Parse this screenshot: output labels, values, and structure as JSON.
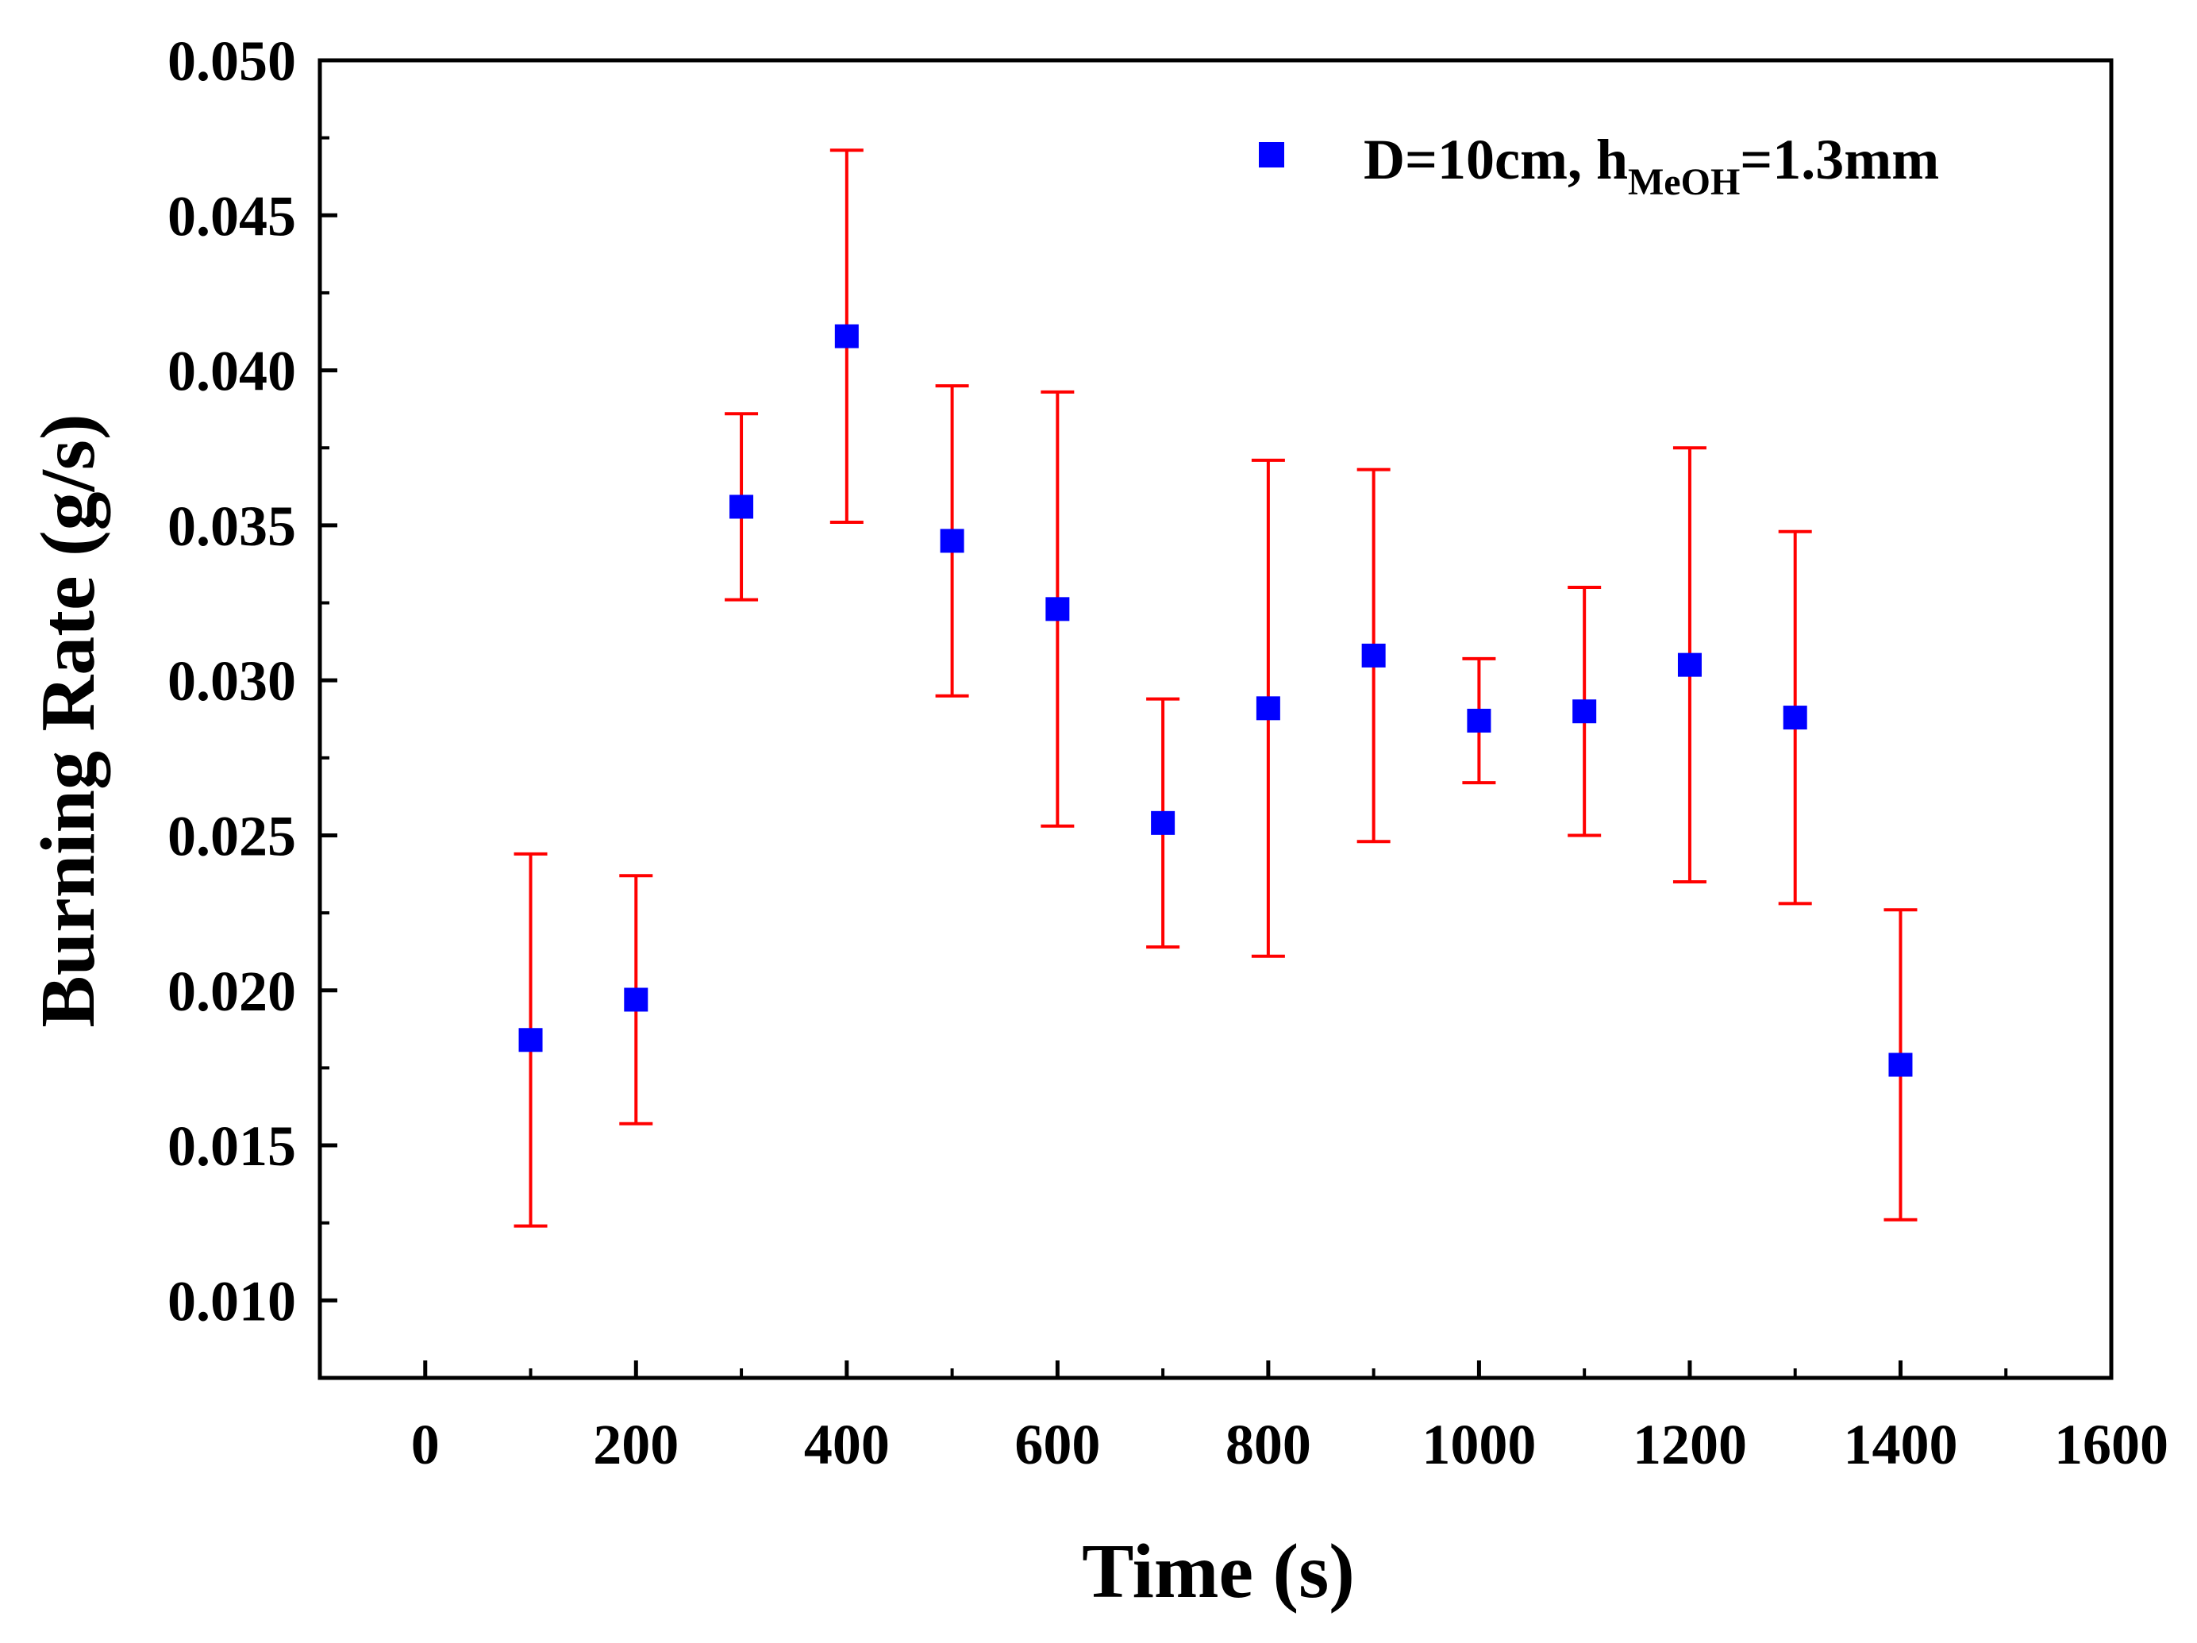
{
  "chart_data": {
    "type": "scatter",
    "xlabel": "Time (s)",
    "ylabel": "Burning Rate (g/s)",
    "xlim": [
      -100,
      1600
    ],
    "ylim": [
      0.0075,
      0.05
    ],
    "x_ticks": [
      0,
      200,
      400,
      600,
      800,
      1000,
      1200,
      1400,
      1600
    ],
    "x_tick_labels": [
      "0",
      "200",
      "400",
      "600",
      "800",
      "1000",
      "1200",
      "1400",
      "1600"
    ],
    "y_ticks": [
      0.01,
      0.015,
      0.02,
      0.025,
      0.03,
      0.035,
      0.04,
      0.045,
      0.05
    ],
    "y_tick_labels": [
      "0.010",
      "0.015",
      "0.020",
      "0.025",
      "0.030",
      "0.035",
      "0.040",
      "0.045",
      "0.050"
    ],
    "legend": {
      "position": "top-right",
      "prefix": "D=10cm, h",
      "subscript": "MeOH",
      "suffix": "=1.3mm"
    },
    "marker_color": "#0000ff",
    "error_bar_color": "#ff0000",
    "series": [
      {
        "name": "D=10cm, hMeOH=1.3mm",
        "x": [
          100,
          200,
          300,
          400,
          500,
          600,
          700,
          800,
          900,
          1000,
          1100,
          1200,
          1300,
          1400
        ],
        "y": [
          0.0184,
          0.0197,
          0.0356,
          0.0411,
          0.0345,
          0.0323,
          0.0254,
          0.0291,
          0.0308,
          0.0287,
          0.029,
          0.0305,
          0.0288,
          0.0176
        ],
        "y_upper": [
          0.0244,
          0.0237,
          0.0386,
          0.0471,
          0.0395,
          0.0393,
          0.0294,
          0.0371,
          0.0368,
          0.0307,
          0.033,
          0.0375,
          0.0348,
          0.0226
        ],
        "y_lower": [
          0.0124,
          0.0157,
          0.0326,
          0.0351,
          0.0295,
          0.0253,
          0.0214,
          0.0211,
          0.0248,
          0.0267,
          0.025,
          0.0235,
          0.0228,
          0.0126
        ]
      }
    ]
  }
}
